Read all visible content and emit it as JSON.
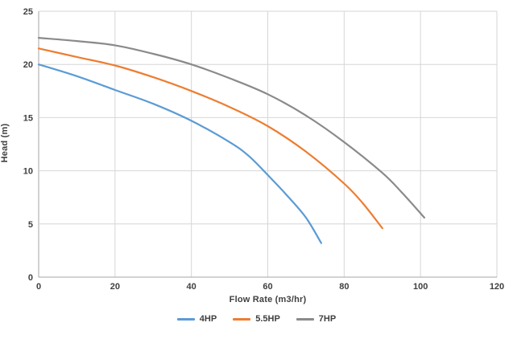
{
  "chart_data": {
    "type": "line",
    "title": "",
    "xlabel": "Flow Rate (m3/hr)",
    "ylabel": "Head (m)",
    "xlim": [
      0,
      120
    ],
    "ylim": [
      0,
      25
    ],
    "x_ticks": [
      0,
      20,
      40,
      60,
      80,
      100,
      120
    ],
    "y_ticks": [
      0,
      5,
      10,
      15,
      20,
      25
    ],
    "grid": true,
    "legend_position": "bottom",
    "colors": {
      "gridline": "#d6d6d6",
      "axis": "#a6a6a6",
      "tick_text": "#3f3f3f"
    },
    "series": [
      {
        "name": "4HP",
        "color": "#5b9bd5",
        "points": [
          [
            0,
            20.0
          ],
          [
            10,
            18.9
          ],
          [
            20,
            17.6
          ],
          [
            30,
            16.3
          ],
          [
            40,
            14.7
          ],
          [
            50,
            12.7
          ],
          [
            55,
            11.4
          ],
          [
            60,
            9.6
          ],
          [
            65,
            7.7
          ],
          [
            70,
            5.6
          ],
          [
            74,
            3.2
          ]
        ]
      },
      {
        "name": "5.5HP",
        "color": "#ed7d31",
        "points": [
          [
            0,
            21.5
          ],
          [
            10,
            20.7
          ],
          [
            20,
            19.9
          ],
          [
            30,
            18.8
          ],
          [
            40,
            17.5
          ],
          [
            50,
            16.0
          ],
          [
            60,
            14.2
          ],
          [
            70,
            11.8
          ],
          [
            80,
            8.8
          ],
          [
            85,
            6.9
          ],
          [
            90,
            4.6
          ]
        ]
      },
      {
        "name": "7HP",
        "color": "#8a8a8a",
        "points": [
          [
            0,
            22.5
          ],
          [
            10,
            22.2
          ],
          [
            20,
            21.8
          ],
          [
            30,
            21.0
          ],
          [
            40,
            20.0
          ],
          [
            50,
            18.7
          ],
          [
            60,
            17.2
          ],
          [
            70,
            15.2
          ],
          [
            80,
            12.7
          ],
          [
            90,
            9.8
          ],
          [
            95,
            8.0
          ],
          [
            101,
            5.6
          ]
        ]
      }
    ]
  }
}
